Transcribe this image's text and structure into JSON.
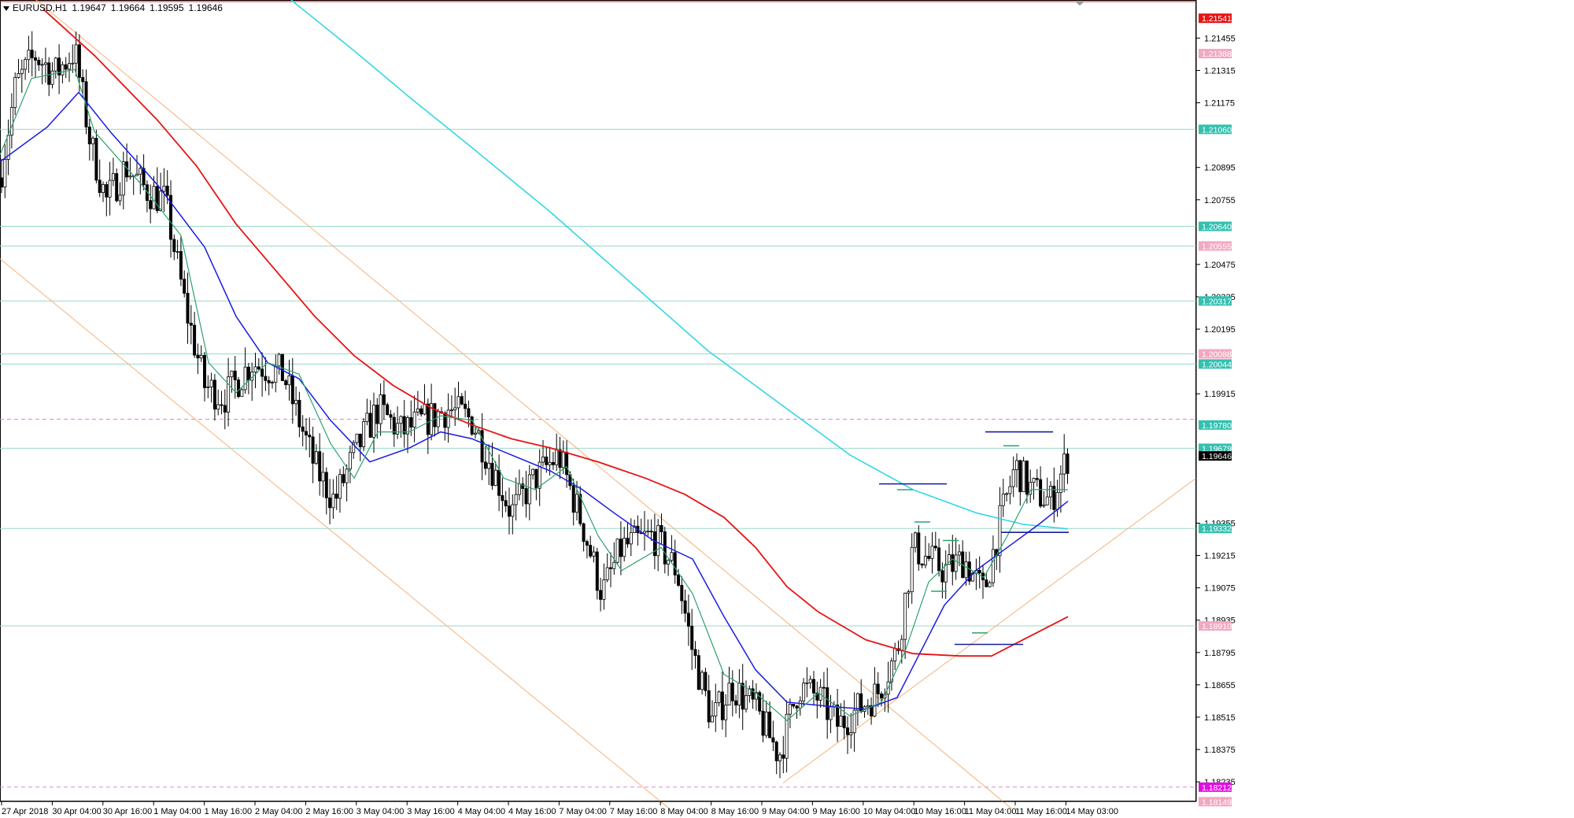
{
  "header": {
    "symbol": "EURUSD,H1",
    "ohlc": [
      "1.19647",
      "1.19664",
      "1.19595",
      "1.19646"
    ]
  },
  "colors": {
    "background": "#ffffff",
    "grid_line": "#b8ebe0",
    "candle_bull_fill": "#ffffff",
    "candle_bear_fill": "#000000",
    "candle_outline": "#000000",
    "ma_fast": "#2ea36b",
    "ma_mid": "#1a1ae6",
    "ma_slow": "#e61414",
    "ma_long": "#33d6e6",
    "channel": "#f5b27a",
    "level_hline": "#9ad9c8",
    "pink_dashed": "#e680e6",
    "red_label": "#e61414",
    "teal_label": "#33c0b0",
    "pink_label": "#f2a8c0",
    "magenta_label": "#e010e0",
    "black_label": "#000000"
  },
  "chart_data": {
    "type": "candlestick",
    "symbol": "EURUSD",
    "timeframe": "H1",
    "y_range": [
      1.1815,
      1.2162
    ],
    "x_range": [
      0,
      1341
    ],
    "price_axis_ticks": [
      "1.21455",
      "1.21315",
      "1.21175",
      "1.20895",
      "1.20755",
      "1.20475",
      "1.20335",
      "1.20195",
      "1.19915",
      "1.19355",
      "1.19215",
      "1.19075",
      "1.18935",
      "1.18795",
      "1.18655",
      "1.18515",
      "1.18375",
      "1.18235"
    ],
    "time_axis_labels": [
      "27 Apr 2018",
      "30 Apr 04:00",
      "30 Apr 16:00",
      "1 May 04:00",
      "1 May 16:00",
      "2 May 04:00",
      "2 May 16:00",
      "3 May 04:00",
      "3 May 16:00",
      "4 May 04:00",
      "4 May 16:00",
      "7 May 04:00",
      "7 May 16:00",
      "8 May 04:00",
      "8 May 16:00",
      "9 May 04:00",
      "9 May 16:00",
      "10 May 04:00",
      "10 May 16:00",
      "11 May 04:00",
      "11 May 16:00",
      "14 May 03:00"
    ],
    "price_labels": [
      {
        "text": "1.21541",
        "value": 1.21541,
        "style": "red"
      },
      {
        "text": "1.21388",
        "value": 1.21388,
        "style": "pink"
      },
      {
        "text": "1.21060",
        "value": 1.2106,
        "style": "teal"
      },
      {
        "text": "1.20640",
        "value": 1.2064,
        "style": "teal"
      },
      {
        "text": "1.20555",
        "value": 1.20555,
        "style": "pink"
      },
      {
        "text": "1.20317",
        "value": 1.20317,
        "style": "teal"
      },
      {
        "text": "1.20088",
        "value": 1.20088,
        "style": "pink"
      },
      {
        "text": "1.20044",
        "value": 1.20044,
        "style": "teal"
      },
      {
        "text": "1.19780",
        "value": 1.1978,
        "style": "teal"
      },
      {
        "text": "1.19679",
        "value": 1.19679,
        "style": "teal"
      },
      {
        "text": "1.19646",
        "value": 1.19646,
        "style": "black"
      },
      {
        "text": "1.19332",
        "value": 1.19332,
        "style": "teal"
      },
      {
        "text": "1.18910",
        "value": 1.1891,
        "style": "pink"
      },
      {
        "text": "1.18212",
        "value": 1.18212,
        "style": "magenta"
      },
      {
        "text": "1.18149",
        "value": 1.18149,
        "style": "pink"
      }
    ],
    "horizontal_levels": [
      1.2106,
      1.2064,
      1.20555,
      1.20317,
      1.20088,
      1.20044,
      1.19679,
      1.19332,
      1.1891
    ],
    "dashed_levels": [
      1.19805,
      1.18212
    ],
    "candle_anchors": [
      {
        "x": 0,
        "p": 1.2085
      },
      {
        "x": 20,
        "p": 1.2125
      },
      {
        "x": 45,
        "p": 1.2138
      },
      {
        "x": 70,
        "p": 1.213
      },
      {
        "x": 95,
        "p": 1.214
      },
      {
        "x": 115,
        "p": 1.21
      },
      {
        "x": 135,
        "p": 1.2075
      },
      {
        "x": 160,
        "p": 1.209
      },
      {
        "x": 185,
        "p": 1.208
      },
      {
        "x": 210,
        "p": 1.2075
      },
      {
        "x": 235,
        "p": 1.203
      },
      {
        "x": 260,
        "p": 1.1995
      },
      {
        "x": 285,
        "p": 1.199
      },
      {
        "x": 320,
        "p": 1.2005
      },
      {
        "x": 360,
        "p": 1.2
      },
      {
        "x": 400,
        "p": 1.196
      },
      {
        "x": 425,
        "p": 1.1945
      },
      {
        "x": 450,
        "p": 1.1965
      },
      {
        "x": 480,
        "p": 1.1985
      },
      {
        "x": 510,
        "p": 1.1975
      },
      {
        "x": 540,
        "p": 1.198
      },
      {
        "x": 570,
        "p": 1.1985
      },
      {
        "x": 600,
        "p": 1.198
      },
      {
        "x": 625,
        "p": 1.196
      },
      {
        "x": 650,
        "p": 1.194
      },
      {
        "x": 680,
        "p": 1.1955
      },
      {
        "x": 710,
        "p": 1.1965
      },
      {
        "x": 740,
        "p": 1.1935
      },
      {
        "x": 765,
        "p": 1.1905
      },
      {
        "x": 790,
        "p": 1.1925
      },
      {
        "x": 830,
        "p": 1.193
      },
      {
        "x": 860,
        "p": 1.1915
      },
      {
        "x": 880,
        "p": 1.188
      },
      {
        "x": 905,
        "p": 1.185
      },
      {
        "x": 930,
        "p": 1.1865
      },
      {
        "x": 960,
        "p": 1.1855
      },
      {
        "x": 990,
        "p": 1.1835
      },
      {
        "x": 1015,
        "p": 1.1865
      },
      {
        "x": 1040,
        "p": 1.186
      },
      {
        "x": 1065,
        "p": 1.1848
      },
      {
        "x": 1090,
        "p": 1.1855
      },
      {
        "x": 1115,
        "p": 1.1862
      },
      {
        "x": 1140,
        "p": 1.188
      },
      {
        "x": 1160,
        "p": 1.1925
      },
      {
        "x": 1180,
        "p": 1.192
      },
      {
        "x": 1200,
        "p": 1.1915
      },
      {
        "x": 1225,
        "p": 1.192
      },
      {
        "x": 1250,
        "p": 1.1905
      },
      {
        "x": 1270,
        "p": 1.1935
      },
      {
        "x": 1290,
        "p": 1.196
      },
      {
        "x": 1310,
        "p": 1.195
      },
      {
        "x": 1335,
        "p": 1.1945
      },
      {
        "x": 1357,
        "p": 1.19646
      }
    ],
    "ma_fast": [
      [
        0,
        1.2095
      ],
      [
        40,
        1.2128
      ],
      [
        95,
        1.2132
      ],
      [
        120,
        1.2105
      ],
      [
        180,
        1.2082
      ],
      [
        230,
        1.206
      ],
      [
        265,
        1.2005
      ],
      [
        300,
        1.1992
      ],
      [
        340,
        1.2005
      ],
      [
        380,
        1.2
      ],
      [
        420,
        1.197
      ],
      [
        450,
        1.1955
      ],
      [
        480,
        1.1975
      ],
      [
        520,
        1.1975
      ],
      [
        560,
        1.1982
      ],
      [
        600,
        1.198
      ],
      [
        640,
        1.1955
      ],
      [
        680,
        1.195
      ],
      [
        720,
        1.196
      ],
      [
        760,
        1.193
      ],
      [
        790,
        1.1915
      ],
      [
        840,
        1.1925
      ],
      [
        880,
        1.1905
      ],
      [
        920,
        1.187
      ],
      [
        960,
        1.1862
      ],
      [
        1000,
        1.185
      ],
      [
        1040,
        1.1862
      ],
      [
        1080,
        1.1852
      ],
      [
        1120,
        1.1858
      ],
      [
        1150,
        1.188
      ],
      [
        1180,
        1.191
      ],
      [
        1210,
        1.192
      ],
      [
        1250,
        1.1912
      ],
      [
        1280,
        1.193
      ],
      [
        1310,
        1.195
      ],
      [
        1357,
        1.195
      ]
    ],
    "ma_mid": [
      [
        0,
        1.2092
      ],
      [
        60,
        1.2107
      ],
      [
        100,
        1.2122
      ],
      [
        140,
        1.2105
      ],
      [
        200,
        1.2082
      ],
      [
        260,
        1.2055
      ],
      [
        300,
        1.2025
      ],
      [
        340,
        1.2005
      ],
      [
        380,
        1.1998
      ],
      [
        420,
        1.198
      ],
      [
        470,
        1.1962
      ],
      [
        520,
        1.1968
      ],
      [
        560,
        1.1975
      ],
      [
        600,
        1.1972
      ],
      [
        650,
        1.1965
      ],
      [
        700,
        1.1958
      ],
      [
        740,
        1.195
      ],
      [
        780,
        1.194
      ],
      [
        830,
        1.1928
      ],
      [
        880,
        1.192
      ],
      [
        920,
        1.1895
      ],
      [
        960,
        1.1872
      ],
      [
        1000,
        1.1858
      ],
      [
        1060,
        1.1856
      ],
      [
        1100,
        1.1855
      ],
      [
        1140,
        1.186
      ],
      [
        1170,
        1.188
      ],
      [
        1200,
        1.19
      ],
      [
        1240,
        1.1915
      ],
      [
        1280,
        1.1925
      ],
      [
        1320,
        1.1935
      ],
      [
        1357,
        1.1945
      ]
    ],
    "ma_slow": [
      [
        55,
        1.2158
      ],
      [
        120,
        1.2138
      ],
      [
        200,
        1.211
      ],
      [
        250,
        1.209
      ],
      [
        300,
        1.2065
      ],
      [
        350,
        1.2045
      ],
      [
        400,
        1.2025
      ],
      [
        450,
        1.2008
      ],
      [
        500,
        1.1995
      ],
      [
        550,
        1.1985
      ],
      [
        600,
        1.1978
      ],
      [
        650,
        1.1972
      ],
      [
        700,
        1.1968
      ],
      [
        760,
        1.1962
      ],
      [
        820,
        1.1955
      ],
      [
        870,
        1.1948
      ],
      [
        920,
        1.1938
      ],
      [
        960,
        1.1925
      ],
      [
        1000,
        1.1908
      ],
      [
        1040,
        1.1897
      ],
      [
        1100,
        1.1885
      ],
      [
        1160,
        1.1879
      ],
      [
        1220,
        1.1878
      ],
      [
        1260,
        1.1878
      ],
      [
        1300,
        1.1885
      ],
      [
        1357,
        1.1895
      ]
    ],
    "ma_long": [
      [
        370,
        1.2162
      ],
      [
        450,
        1.214
      ],
      [
        520,
        1.212
      ],
      [
        600,
        1.2098
      ],
      [
        700,
        1.207
      ],
      [
        800,
        1.204
      ],
      [
        900,
        1.201
      ],
      [
        1000,
        1.1985
      ],
      [
        1080,
        1.1965
      ],
      [
        1160,
        1.195
      ],
      [
        1240,
        1.194
      ],
      [
        1300,
        1.1935
      ],
      [
        1357,
        1.1933
      ]
    ],
    "channel_lines": [
      [
        [
          0,
          1.205
        ],
        [
          850,
          1.1812
        ]
      ],
      [
        [
          0,
          1.2175
        ],
        [
          1285,
          1.1812
        ]
      ],
      [
        [
          995,
          1.1823
        ],
        [
          1520,
          1.1955
        ]
      ]
    ],
    "navy_segments": [
      [
        1117,
        1.19525
      ],
      [
        1203,
        1.19525
      ],
      [
        1252,
        1.1975
      ],
      [
        1338,
        1.1975
      ],
      [
        1272,
        1.19315
      ],
      [
        1358,
        1.19315
      ],
      [
        1213,
        1.1883
      ],
      [
        1300,
        1.1883
      ]
    ],
    "green_ticks": [
      [
        1150,
        1.195
      ],
      [
        1172,
        1.1936
      ],
      [
        1208,
        1.1928
      ],
      [
        1193,
        1.1906
      ],
      [
        1245,
        1.1888
      ],
      [
        1285,
        1.1969
      ]
    ]
  }
}
